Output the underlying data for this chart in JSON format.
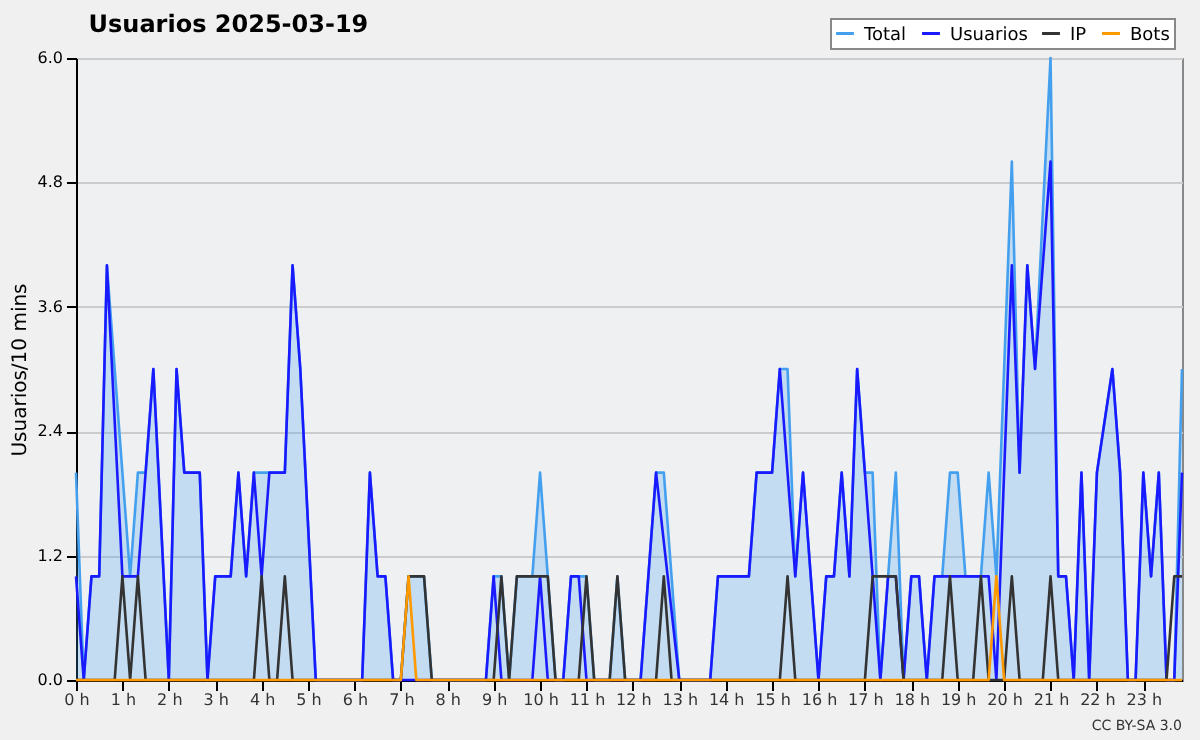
{
  "chart_data": {
    "type": "line",
    "title": "Usuarios  2025-03-19",
    "ylabel": "Usuarios/10 mins",
    "annotations": [
      "CC BY-SA 3.0"
    ],
    "xlim": [
      "2025-03-19T00:00",
      "2025-03-19T23:50"
    ],
    "xticks": [
      {
        "value": "2025-03-19T00:00",
        "label": "0 h"
      },
      {
        "value": "2025-03-19T01:00",
        "label": "1 h"
      },
      {
        "value": "2025-03-19T02:00",
        "label": "2 h"
      },
      {
        "value": "2025-03-19T03:00",
        "label": "3 h"
      },
      {
        "value": "2025-03-19T04:00",
        "label": "4 h"
      },
      {
        "value": "2025-03-19T05:00",
        "label": "5 h"
      },
      {
        "value": "2025-03-19T06:00",
        "label": "6 h"
      },
      {
        "value": "2025-03-19T07:00",
        "label": "7 h"
      },
      {
        "value": "2025-03-19T08:00",
        "label": "8 h"
      },
      {
        "value": "2025-03-19T09:00",
        "label": "9 h"
      },
      {
        "value": "2025-03-19T10:00",
        "label": "10 h"
      },
      {
        "value": "2025-03-19T11:00",
        "label": "11 h"
      },
      {
        "value": "2025-03-19T12:00",
        "label": "12 h"
      },
      {
        "value": "2025-03-19T13:00",
        "label": "13 h"
      },
      {
        "value": "2025-03-19T14:00",
        "label": "14 h"
      },
      {
        "value": "2025-03-19T15:00",
        "label": "15 h"
      },
      {
        "value": "2025-03-19T16:00",
        "label": "16 h"
      },
      {
        "value": "2025-03-19T17:00",
        "label": "17 h"
      },
      {
        "value": "2025-03-19T18:00",
        "label": "18 h"
      },
      {
        "value": "2025-03-19T19:00",
        "label": "19 h"
      },
      {
        "value": "2025-03-19T20:00",
        "label": "20 h"
      },
      {
        "value": "2025-03-19T21:00",
        "label": "21 h"
      },
      {
        "value": "2025-03-19T22:00",
        "label": "22 h"
      },
      {
        "value": "2025-03-19T23:00",
        "label": "23 h"
      }
    ],
    "ylim": [
      0,
      6
    ],
    "yticks": [
      {
        "value": 0,
        "label": "0.0"
      },
      1.2,
      2.4,
      3.6,
      4.8,
      {
        "value": 6,
        "label": "6.0"
      }
    ],
    "grid": "y",
    "legend": "top right",
    "series": [
      {
        "name": "Total",
        "type": "area",
        "color": "#44a0ee",
        "x": [
          "2025-03-19T00:00",
          "2025-03-19T00:10",
          "2025-03-19T00:20",
          "2025-03-19T00:30",
          "2025-03-19T00:40",
          "2025-03-19T01:00",
          "2025-03-19T01:10",
          "2025-03-19T01:20",
          "2025-03-19T01:30",
          "2025-03-19T01:40",
          "2025-03-19T02:00",
          "2025-03-19T02:10",
          "2025-03-19T02:20",
          "2025-03-19T02:40",
          "2025-03-19T02:50",
          "2025-03-19T03:00",
          "2025-03-19T03:20",
          "2025-03-19T03:30",
          "2025-03-19T03:40",
          "2025-03-19T03:50",
          "2025-03-19T04:30",
          "2025-03-19T04:40",
          "2025-03-19T04:50",
          "2025-03-19T05:10",
          "2025-03-19T06:10",
          "2025-03-19T06:20",
          "2025-03-19T06:30",
          "2025-03-19T06:40",
          "2025-03-19T06:50",
          "2025-03-19T07:00",
          "2025-03-19T07:10",
          "2025-03-19T07:30",
          "2025-03-19T07:40",
          "2025-03-19T08:50",
          "2025-03-19T09:00",
          "2025-03-19T09:10",
          "2025-03-19T09:20",
          "2025-03-19T09:30",
          "2025-03-19T09:50",
          "2025-03-19T10:00",
          "2025-03-19T10:10",
          "2025-03-19T10:20",
          "2025-03-19T10:30",
          "2025-03-19T10:40",
          "2025-03-19T11:00",
          "2025-03-19T11:10",
          "2025-03-19T11:30",
          "2025-03-19T11:40",
          "2025-03-19T11:50",
          "2025-03-19T12:10",
          "2025-03-19T12:30",
          "2025-03-19T12:40",
          "2025-03-19T13:00",
          "2025-03-19T13:40",
          "2025-03-19T13:50",
          "2025-03-19T14:30",
          "2025-03-19T14:40",
          "2025-03-19T15:00",
          "2025-03-19T15:10",
          "2025-03-19T15:20",
          "2025-03-19T15:30",
          "2025-03-19T15:40",
          "2025-03-19T16:00",
          "2025-03-19T16:10",
          "2025-03-19T16:20",
          "2025-03-19T16:30",
          "2025-03-19T16:40",
          "2025-03-19T16:50",
          "2025-03-19T17:00",
          "2025-03-19T17:10",
          "2025-03-19T17:20",
          "2025-03-19T17:40",
          "2025-03-19T17:50",
          "2025-03-19T18:00",
          "2025-03-19T18:10",
          "2025-03-19T18:20",
          "2025-03-19T18:30",
          "2025-03-19T18:40",
          "2025-03-19T18:50",
          "2025-03-19T19:00",
          "2025-03-19T19:10",
          "2025-03-19T19:30",
          "2025-03-19T19:40",
          "2025-03-19T19:50",
          "2025-03-19T20:10",
          "2025-03-19T20:20",
          "2025-03-19T20:30",
          "2025-03-19T20:40",
          "2025-03-19T21:00",
          "2025-03-19T21:10",
          "2025-03-19T21:20",
          "2025-03-19T21:30",
          "2025-03-19T21:40",
          "2025-03-19T21:50",
          "2025-03-19T22:00",
          "2025-03-19T22:20",
          "2025-03-19T22:30",
          "2025-03-19T22:40",
          "2025-03-19T22:50",
          "2025-03-19T23:00",
          "2025-03-19T23:10",
          "2025-03-19T23:20",
          "2025-03-19T23:30",
          "2025-03-19T23:40",
          "2025-03-19T23:50"
        ],
        "values": [
          2,
          0,
          1,
          1,
          4,
          2,
          1,
          2,
          2,
          3,
          0,
          3,
          2,
          2,
          0,
          1,
          1,
          2,
          1,
          2,
          2,
          4,
          3,
          0,
          0,
          2,
          1,
          1,
          0,
          0,
          1,
          1,
          0,
          0,
          1,
          1,
          0,
          1,
          1,
          2,
          1,
          0,
          0,
          1,
          1,
          0,
          0,
          1,
          0,
          0,
          2,
          2,
          0,
          0,
          1,
          1,
          2,
          2,
          3,
          3,
          1,
          2,
          0,
          1,
          1,
          2,
          1,
          3,
          2,
          2,
          0,
          2,
          0,
          1,
          1,
          0,
          1,
          1,
          2,
          2,
          1,
          1,
          2,
          1,
          5,
          2,
          4,
          3,
          6,
          1,
          1,
          0,
          2,
          0,
          2,
          3,
          2,
          0,
          0,
          2,
          1,
          2,
          0,
          0,
          3
        ]
      },
      {
        "name": "Usuarios",
        "type": "line",
        "color": "#1a1aff",
        "x": [
          "2025-03-19T00:00",
          "2025-03-19T00:10",
          "2025-03-19T00:20",
          "2025-03-19T00:30",
          "2025-03-19T00:40",
          "2025-03-19T01:00",
          "2025-03-19T01:20",
          "2025-03-19T01:40",
          "2025-03-19T02:00",
          "2025-03-19T02:10",
          "2025-03-19T02:20",
          "2025-03-19T02:40",
          "2025-03-19T02:50",
          "2025-03-19T03:00",
          "2025-03-19T03:20",
          "2025-03-19T03:30",
          "2025-03-19T03:40",
          "2025-03-19T03:50",
          "2025-03-19T04:00",
          "2025-03-19T04:10",
          "2025-03-19T04:30",
          "2025-03-19T04:40",
          "2025-03-19T04:50",
          "2025-03-19T05:10",
          "2025-03-19T06:10",
          "2025-03-19T06:20",
          "2025-03-19T06:30",
          "2025-03-19T06:40",
          "2025-03-19T06:50",
          "2025-03-19T08:50",
          "2025-03-19T09:00",
          "2025-03-19T09:10",
          "2025-03-19T09:50",
          "2025-03-19T10:00",
          "2025-03-19T10:10",
          "2025-03-19T10:30",
          "2025-03-19T10:40",
          "2025-03-19T10:50",
          "2025-03-19T11:00",
          "2025-03-19T12:10",
          "2025-03-19T12:30",
          "2025-03-19T13:00",
          "2025-03-19T13:40",
          "2025-03-19T13:50",
          "2025-03-19T14:30",
          "2025-03-19T14:40",
          "2025-03-19T15:00",
          "2025-03-19T15:10",
          "2025-03-19T15:30",
          "2025-03-19T15:40",
          "2025-03-19T16:00",
          "2025-03-19T16:10",
          "2025-03-19T16:20",
          "2025-03-19T16:30",
          "2025-03-19T16:40",
          "2025-03-19T16:50",
          "2025-03-19T17:20",
          "2025-03-19T17:30",
          "2025-03-19T17:40",
          "2025-03-19T17:50",
          "2025-03-19T18:00",
          "2025-03-19T18:10",
          "2025-03-19T18:20",
          "2025-03-19T18:30",
          "2025-03-19T19:40",
          "2025-03-19T19:50",
          "2025-03-19T20:10",
          "2025-03-19T20:20",
          "2025-03-19T20:30",
          "2025-03-19T20:40",
          "2025-03-19T21:00",
          "2025-03-19T21:10",
          "2025-03-19T21:20",
          "2025-03-19T21:30",
          "2025-03-19T21:40",
          "2025-03-19T21:50",
          "2025-03-19T22:00",
          "2025-03-19T22:20",
          "2025-03-19T22:30",
          "2025-03-19T22:40",
          "2025-03-19T22:50",
          "2025-03-19T23:00",
          "2025-03-19T23:10",
          "2025-03-19T23:20",
          "2025-03-19T23:30",
          "2025-03-19T23:40",
          "2025-03-19T23:50"
        ],
        "values": [
          1,
          0,
          1,
          1,
          4,
          1,
          1,
          3,
          0,
          3,
          2,
          2,
          0,
          1,
          1,
          2,
          1,
          2,
          1,
          2,
          2,
          4,
          3,
          0,
          0,
          2,
          1,
          1,
          0,
          0,
          1,
          0,
          0,
          1,
          0,
          0,
          1,
          1,
          0,
          0,
          2,
          0,
          0,
          1,
          1,
          2,
          2,
          3,
          1,
          2,
          0,
          1,
          1,
          2,
          1,
          3,
          0,
          1,
          1,
          0,
          1,
          1,
          0,
          1,
          1,
          0,
          4,
          2,
          4,
          3,
          5,
          1,
          1,
          0,
          2,
          0,
          2,
          3,
          2,
          0,
          0,
          2,
          1,
          2,
          0,
          0,
          2
        ]
      },
      {
        "name": "IP",
        "type": "line",
        "color": "#333333",
        "x": [
          "2025-03-19T00:00",
          "2025-03-19T00:50",
          "2025-03-19T01:00",
          "2025-03-19T01:10",
          "2025-03-19T01:20",
          "2025-03-19T01:30",
          "2025-03-19T03:50",
          "2025-03-19T04:00",
          "2025-03-19T04:10",
          "2025-03-19T04:20",
          "2025-03-19T04:30",
          "2025-03-19T04:40",
          "2025-03-19T07:00",
          "2025-03-19T07:10",
          "2025-03-19T07:30",
          "2025-03-19T07:40",
          "2025-03-19T09:00",
          "2025-03-19T09:10",
          "2025-03-19T09:20",
          "2025-03-19T09:30",
          "2025-03-19T10:10",
          "2025-03-19T10:20",
          "2025-03-19T10:50",
          "2025-03-19T11:00",
          "2025-03-19T11:10",
          "2025-03-19T11:30",
          "2025-03-19T11:40",
          "2025-03-19T11:50",
          "2025-03-19T12:30",
          "2025-03-19T12:40",
          "2025-03-19T12:50",
          "2025-03-19T15:10",
          "2025-03-19T15:20",
          "2025-03-19T15:30",
          "2025-03-19T17:00",
          "2025-03-19T17:10",
          "2025-03-19T17:40",
          "2025-03-19T17:50",
          "2025-03-19T18:40",
          "2025-03-19T18:50",
          "2025-03-19T19:00",
          "2025-03-19T19:20",
          "2025-03-19T19:30",
          "2025-03-19T19:40",
          "2025-03-19T20:00",
          "2025-03-19T20:10",
          "2025-03-19T20:20",
          "2025-03-19T20:50",
          "2025-03-19T21:00",
          "2025-03-19T21:10",
          "2025-03-19T23:30",
          "2025-03-19T23:40",
          "2025-03-19T23:50"
        ],
        "values": [
          0,
          0,
          1,
          0,
          1,
          0,
          0,
          1,
          0,
          0,
          1,
          0,
          0,
          1,
          1,
          0,
          0,
          1,
          0,
          1,
          1,
          0,
          0,
          1,
          0,
          0,
          1,
          0,
          0,
          1,
          0,
          0,
          1,
          0,
          0,
          1,
          1,
          0,
          0,
          1,
          0,
          0,
          1,
          0,
          0,
          1,
          0,
          0,
          1,
          0,
          0,
          1,
          1
        ]
      },
      {
        "name": "Bots",
        "type": "line",
        "color": "#ff9900",
        "x": [
          "2025-03-19T00:00",
          "2025-03-19T07:00",
          "2025-03-19T07:10",
          "2025-03-19T07:20",
          "2025-03-19T19:40",
          "2025-03-19T19:50",
          "2025-03-19T20:00",
          "2025-03-19T23:50"
        ],
        "values": [
          0,
          0,
          1,
          0,
          0,
          1,
          0,
          0
        ]
      }
    ]
  }
}
